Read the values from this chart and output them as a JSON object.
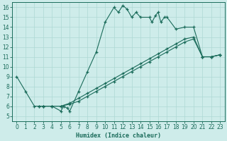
{
  "xlabel": "Humidex (Indice chaleur)",
  "bg_color": "#ceecea",
  "grid_color": "#aed8d4",
  "line_color": "#1a6b5a",
  "xlim": [
    -0.5,
    23.5
  ],
  "ylim": [
    4.5,
    16.5
  ],
  "xticks": [
    0,
    1,
    2,
    3,
    4,
    5,
    6,
    7,
    8,
    9,
    10,
    11,
    12,
    13,
    14,
    15,
    16,
    17,
    18,
    19,
    20,
    21,
    22,
    23
  ],
  "yticks": [
    5,
    6,
    7,
    8,
    9,
    10,
    11,
    12,
    13,
    14,
    15,
    16
  ],
  "curve1_x": [
    0,
    1,
    2,
    3,
    4,
    5,
    5.3,
    5.7,
    6,
    7,
    8,
    9,
    10,
    11,
    11.5,
    12,
    12.5,
    13,
    13.5,
    14,
    15,
    15.3,
    15.7,
    16,
    16.3,
    16.7,
    17,
    18,
    19,
    20,
    21,
    22,
    23
  ],
  "curve1_y": [
    9,
    7.5,
    6,
    6,
    6,
    5.5,
    6,
    5.8,
    5.5,
    7.5,
    9.5,
    11.5,
    14.5,
    16,
    15.5,
    16.2,
    15.8,
    15,
    15.5,
    15,
    15,
    14.5,
    15.2,
    15.5,
    14.5,
    15.0,
    15,
    13.8,
    14,
    14,
    11,
    11,
    11.2
  ],
  "curve2_x": [
    2.5,
    3,
    4,
    5,
    6,
    7,
    8,
    9,
    10,
    11,
    12,
    13,
    14,
    15,
    16,
    17,
    18,
    19,
    20,
    21,
    22,
    23
  ],
  "curve2_y": [
    6,
    6,
    6,
    6,
    6.2,
    6.5,
    7,
    7.5,
    8,
    8.5,
    9,
    9.5,
    10,
    10.5,
    11,
    11.5,
    12,
    12.5,
    12.8,
    11,
    11,
    11.2
  ],
  "curve3_x": [
    2.5,
    3,
    4,
    5,
    6,
    7,
    8,
    9,
    10,
    11,
    12,
    13,
    14,
    15,
    16,
    17,
    18,
    19,
    20,
    21,
    22,
    23
  ],
  "curve3_y": [
    6,
    6,
    6,
    6,
    6.3,
    6.8,
    7.3,
    7.8,
    8.3,
    8.8,
    9.3,
    9.8,
    10.3,
    10.8,
    11.3,
    11.8,
    12.3,
    12.8,
    13.0,
    11,
    11,
    11.2
  ]
}
